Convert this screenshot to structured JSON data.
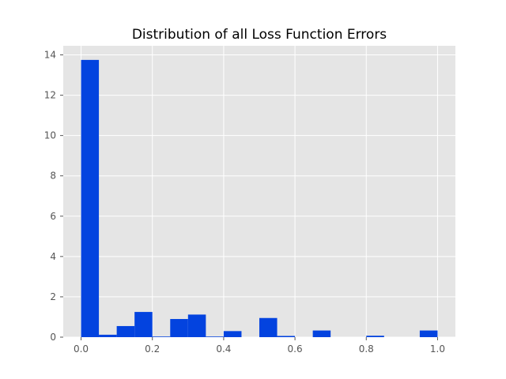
{
  "chart_data": {
    "type": "bar",
    "title": "Distribution of all Loss Function Errors",
    "xlabel": "",
    "ylabel": "",
    "xlim": [
      -0.05,
      1.05
    ],
    "ylim": [
      0,
      14.45
    ],
    "grid": true,
    "x_ticks": [
      "0.0",
      "0.2",
      "0.4",
      "0.6",
      "0.8",
      "1.0"
    ],
    "y_ticks": [
      "0",
      "2",
      "4",
      "6",
      "8",
      "10",
      "12",
      "14"
    ],
    "bin_edges": [
      0.0,
      0.05,
      0.1,
      0.15,
      0.2,
      0.25,
      0.3,
      0.35,
      0.4,
      0.45,
      0.5,
      0.55,
      0.6,
      0.65,
      0.7,
      0.75,
      0.8,
      0.85,
      0.9,
      0.95,
      1.0
    ],
    "values": [
      13.75,
      0.12,
      0.55,
      1.25,
      0.03,
      0.9,
      1.12,
      0.03,
      0.3,
      0.0,
      0.95,
      0.06,
      0.0,
      0.33,
      0.0,
      0.0,
      0.07,
      0.0,
      0.0,
      0.33
    ],
    "colors": {
      "bar": "#0343df",
      "background": "#e5e5e5",
      "grid": "#ffffff",
      "tick": "#555555"
    }
  }
}
